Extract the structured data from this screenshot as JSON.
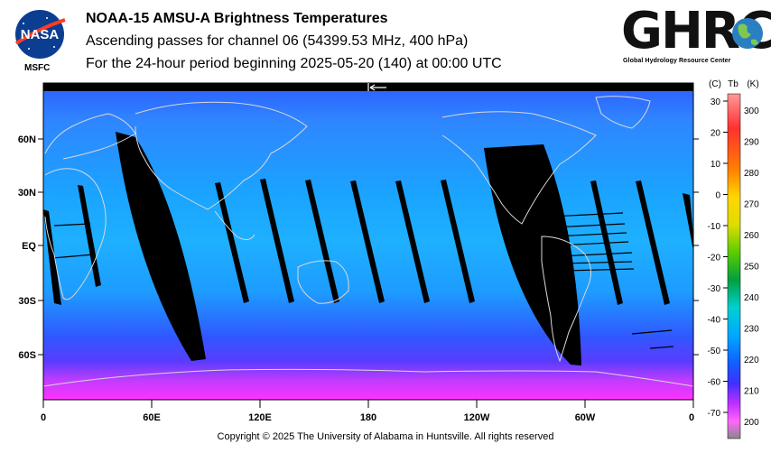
{
  "header": {
    "title": "NOAA-15 AMSU-A Brightness Temperatures",
    "subtitle": "Ascending passes for channel 06 (54399.53 MHz, 400 hPa)",
    "period": "For the 24-hour period beginning 2025-05-20 (140) at 00:00 UTC"
  },
  "logos": {
    "nasa": "NASA",
    "msfc": "MSFC",
    "ghrc": "GHRC",
    "ghrc_subtitle": "Global Hydrology Resource Center"
  },
  "map": {
    "lat_labels": [
      "60N",
      "30N",
      "EQ",
      "30S",
      "60S"
    ],
    "lon_labels": [
      "0",
      "60E",
      "120E",
      "180",
      "120W",
      "60W",
      "0"
    ],
    "colors": {
      "cold": "#ff33ff",
      "cool": "#3c46ff",
      "mid": "#2f7fff",
      "warm": "#1ca8ff",
      "gap": "#000000",
      "coast": "#d8d8d8"
    }
  },
  "colorbar": {
    "unit_c": "(C)",
    "unit_tb": "Tb",
    "unit_k": "(K)",
    "celsius": [
      "30",
      "20",
      "10",
      "0",
      "-10",
      "-20",
      "-30",
      "-40",
      "-50",
      "-60",
      "-70"
    ],
    "kelvin": [
      "300",
      "290",
      "280",
      "270",
      "260",
      "250",
      "240",
      "230",
      "220",
      "210",
      "200"
    ]
  },
  "footer": {
    "copyright": "Copyright © 2025 The University of Alabama in Huntsville.  All rights reserved"
  }
}
